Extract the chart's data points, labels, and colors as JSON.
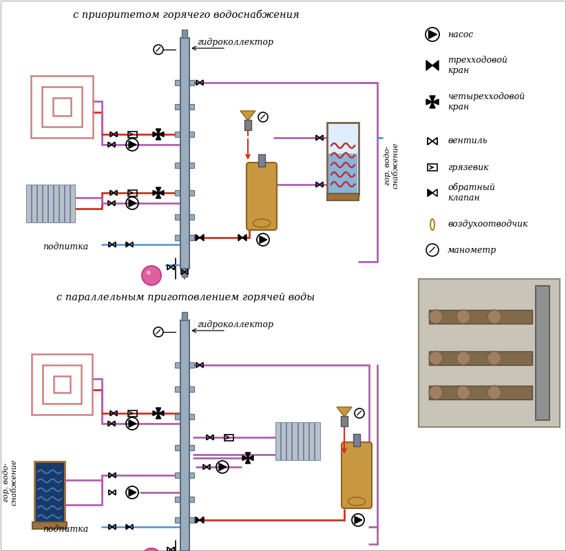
{
  "title_top": "с приоритетом горячего водоснабжения",
  "title_bottom": "с параллельным приготовлением горячей воды",
  "label_collector_top": "гидроколлектор",
  "label_collector_bottom": "гидроколлектор",
  "label_podpitka_top": "подпитка",
  "label_podpitka_bottom": "подпитка",
  "label_gor_vodo_top": "гор. водо-\nснабжение",
  "label_gor_vodo_bottom": "гор. водо-\nснабжение",
  "bg_color": "#ffffff",
  "pipe_red": "#d03020",
  "pipe_blue": "#4a90d9",
  "pipe_pink": "#b060b0",
  "pipe_gray": "#909090",
  "collector_color": "#9aacbe",
  "radiator_color": "#b8c0c8",
  "tank_color": "#c89840",
  "solar_color": "#1a3a6a",
  "ball_color": "#e060a0"
}
